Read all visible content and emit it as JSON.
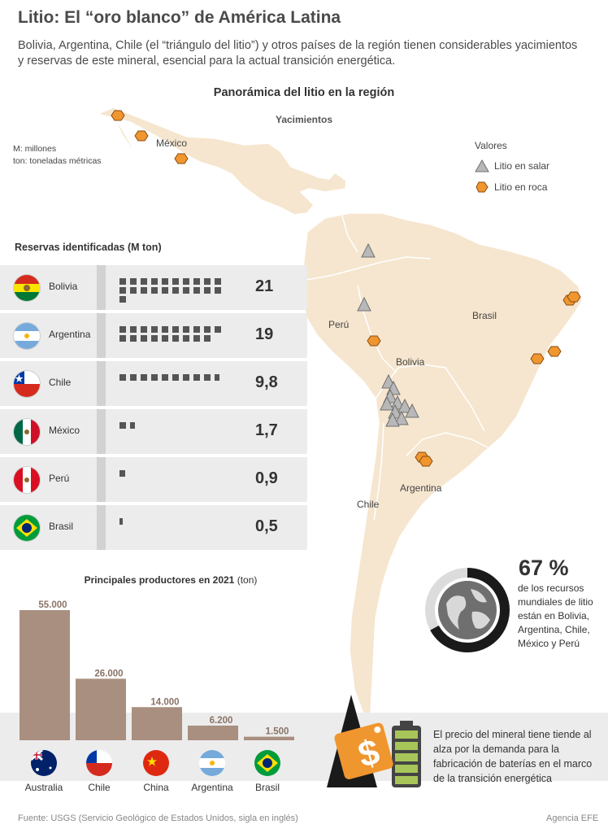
{
  "header": {
    "title": "Litio: El “oro blanco” de América Latina",
    "subtitle": "Bolivia, Argentina, Chile (el “triángulo del litio”) y otros países de la región tienen considerables yacimientos y reservas de este mineral, esencial para la actual transición energética."
  },
  "map": {
    "title": "Panorámica del litio en la región",
    "subtitle": "Yacimientos",
    "units_1": "M: millones",
    "units_2": "ton: toneladas métricas",
    "legend_title": "Valores",
    "legend_salar": "Litio en salar",
    "legend_roca": "Litio en roca",
    "labels": {
      "mexico": "México",
      "peru": "Perú",
      "bolivia": "Bolivia",
      "brasil": "Brasil",
      "argentina": "Argentina",
      "chile": "Chile"
    },
    "colors": {
      "land": "#f6e6cf",
      "outline": "#ffffff",
      "rock": "#f0962e",
      "salar": "#b8b8b8"
    }
  },
  "chart_data": [
    {
      "type": "bar",
      "title": "Reservas identificadas (M ton)",
      "categories": [
        "Bolivia",
        "Argentina",
        "Chile",
        "México",
        "Perú",
        "Brasil"
      ],
      "values": [
        21,
        19,
        9.8,
        1.7,
        0.9,
        0.5
      ],
      "value_labels": [
        "21",
        "19",
        "9,8",
        "1,7",
        "0,9",
        "0,5"
      ],
      "flags": [
        "bolivia-flag",
        "argentina-flag",
        "chile-flag",
        "mexico-flag",
        "peru-flag",
        "brasil-flag"
      ]
    },
    {
      "type": "bar",
      "title": "Principales productores en 2021",
      "title_unit": "(ton)",
      "categories": [
        "Australia",
        "Chile",
        "China",
        "Argentina",
        "Brasil"
      ],
      "values": [
        55000,
        26000,
        14000,
        6200,
        1500
      ],
      "value_labels": [
        "55.000",
        "26.000",
        "14.000",
        "6.200",
        "1.500"
      ],
      "flags": [
        "australia-flag",
        "chile-flag",
        "china-flag",
        "argentina-flag",
        "brasil-flag"
      ],
      "bar_color": "#a98f80"
    }
  ],
  "share": {
    "value": "67 %",
    "percent": 67,
    "text": "de los recursos mundiales de litio están en Bolivia, Argentina, Chile, México y Perú"
  },
  "price_note": "El precio del mineral tiene tiende al alza por la demanda para la fabricación de baterías en el marco de la transición energética",
  "footer": {
    "source": "Fuente: USGS (Servicio Geológico de Estados Unidos, sigla en inglés)",
    "credit": "Agencia EFE"
  }
}
